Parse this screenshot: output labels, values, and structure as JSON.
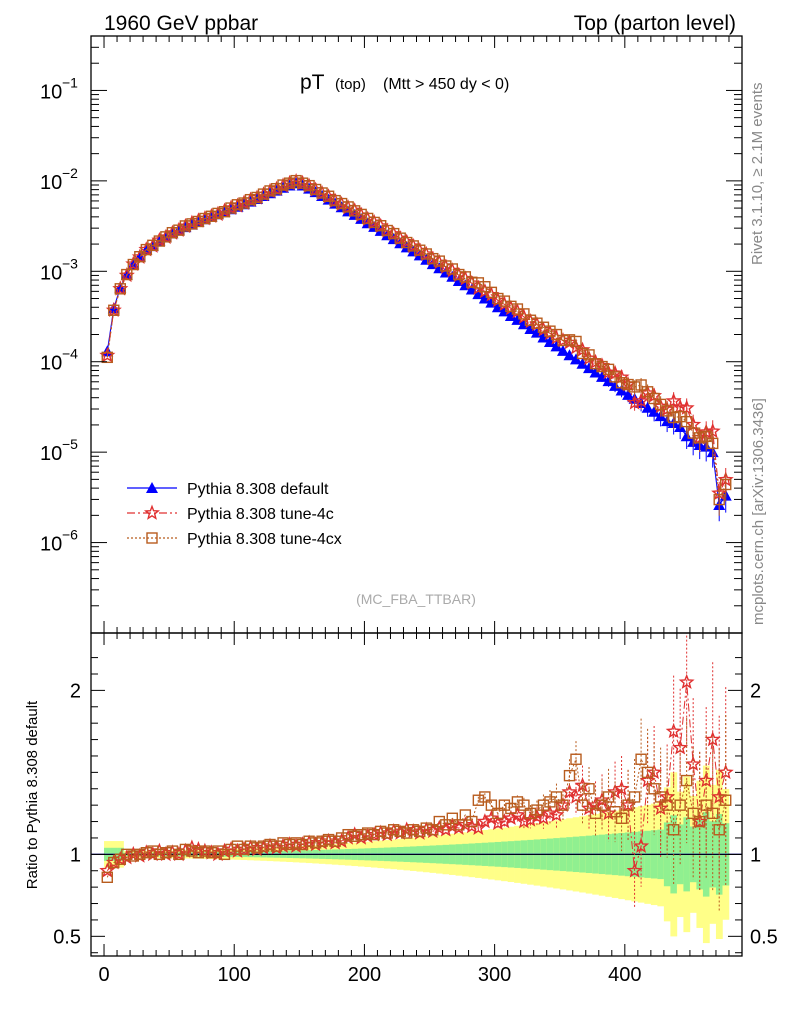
{
  "header": {
    "left": "1960 GeV ppbar",
    "right": "Top (parton level)"
  },
  "plot_title": {
    "main": "pT",
    "sub": "(top)",
    "cut": "(Mtt > 450 dy < 0)"
  },
  "side_labels": {
    "rivet": "Rivet 3.1.10, ≥ 2.1M events",
    "mcplots": "mcplots.cern.ch [arXiv:1306.3436]"
  },
  "analysis_tag": "(MC_FBA_TTBAR)",
  "ratio_ylabel": "Ratio to Pythia 8.308 default",
  "colors": {
    "default": "#0000ff",
    "tune4c": "#e03030",
    "tune4cx": "#b85c1e",
    "band_green": "#90f090",
    "band_yellow": "#ffff88"
  },
  "chart_data": [
    {
      "type": "scatter",
      "log_y": true,
      "xlim": [
        -10,
        490
      ],
      "ylim": [
        1e-07,
        0.4
      ],
      "y_ticks": [
        {
          "value": 1e-06,
          "label": "10",
          "exp": "−6"
        },
        {
          "value": 1e-05,
          "label": "10",
          "exp": "−5"
        },
        {
          "value": 0.0001,
          "label": "10",
          "exp": "−4"
        },
        {
          "value": 0.001,
          "label": "10",
          "exp": "−3"
        },
        {
          "value": 0.01,
          "label": "10",
          "exp": "−2"
        },
        {
          "value": 0.1,
          "label": "10",
          "exp": "−1"
        }
      ],
      "legend_position": "bottom-left",
      "series": [
        {
          "name": "Pythia 8.308 default",
          "key": "default",
          "marker": "triangle",
          "x": [
            2.5,
            7.5,
            12.5,
            17.5,
            22.5,
            27.5,
            32.5,
            37.5,
            42.5,
            47.5,
            52.5,
            57.5,
            62.5,
            67.5,
            72.5,
            77.5,
            82.5,
            87.5,
            92.5,
            97.5,
            102.5,
            107.5,
            112.5,
            117.5,
            122.5,
            127.5,
            132.5,
            137.5,
            142.5,
            147.5,
            152.5,
            157.5,
            162.5,
            167.5,
            172.5,
            177.5,
            182.5,
            187.5,
            192.5,
            197.5,
            202.5,
            207.5,
            212.5,
            217.5,
            222.5,
            227.5,
            232.5,
            237.5,
            242.5,
            247.5,
            252.5,
            257.5,
            262.5,
            267.5,
            272.5,
            277.5,
            282.5,
            287.5,
            292.5,
            297.5,
            302.5,
            307.5,
            312.5,
            317.5,
            322.5,
            327.5,
            332.5,
            337.5,
            342.5,
            347.5,
            352.5,
            357.5,
            362.5,
            367.5,
            372.5,
            377.5,
            382.5,
            387.5,
            392.5,
            397.5,
            402.5,
            407.5,
            412.5,
            417.5,
            422.5,
            427.5,
            432.5,
            437.5,
            442.5,
            447.5,
            452.5,
            457.5,
            462.5,
            467.5,
            472.5,
            477.5
          ],
          "y": [
            0.00013,
            0.00039,
            0.00066,
            0.00092,
            0.0012,
            0.00145,
            0.00172,
            0.0019,
            0.00216,
            0.00238,
            0.00262,
            0.00285,
            0.00308,
            0.00328,
            0.00352,
            0.00376,
            0.00402,
            0.00428,
            0.00456,
            0.00486,
            0.00518,
            0.00552,
            0.0059,
            0.0063,
            0.0068,
            0.0073,
            0.0078,
            0.0084,
            0.0089,
            0.0094,
            0.0089,
            0.0082,
            0.0075,
            0.0068,
            0.0062,
            0.0056,
            0.0051,
            0.0046,
            0.0042,
            0.0038,
            0.0034,
            0.0031,
            0.0028,
            0.0025,
            0.00227,
            0.00204,
            0.00184,
            0.00166,
            0.0015,
            0.00134,
            0.0012,
            0.00108,
            0.00097,
            0.00087,
            0.00078,
            0.0007,
            0.00063,
            0.00056,
            0.0005,
            0.00045,
            0.0004,
            0.00036,
            0.00032,
            0.00029,
            0.00026,
            0.00023,
            0.00021,
            0.000185,
            0.000165,
            0.000148,
            0.000132,
            0.000118,
            0.000106,
            9.5e-05,
            8.5e-05,
            7.6e-05,
            6.8e-05,
            6.1e-05,
            5.4e-05,
            4.8e-05,
            4.3e-05,
            3.9e-05,
            3.5e-05,
            3.1e-05,
            2.8e-05,
            2.5e-05,
            2.2e-05,
            2.1e-05,
            1.9e-05,
            1.5e-05,
            1.3e-05,
            1.2e-05,
            1.15e-05,
            1e-05,
            2.6e-06,
            3.3e-06
          ]
        },
        {
          "name": "Pythia 8.308 tune-4c",
          "key": "tune4c",
          "marker": "star",
          "ratio": [
            0.9,
            0.95,
            0.97,
            0.98,
            1.0,
            0.99,
            1.01,
            1.0,
            1.02,
            1.0,
            1.01,
            1.0,
            1.02,
            1.04,
            1.03,
            1.02,
            1.01,
            1.0,
            1.02,
            1.03,
            1.02,
            1.03,
            1.04,
            1.03,
            1.04,
            1.05,
            1.04,
            1.05,
            1.06,
            1.05,
            1.06,
            1.07,
            1.06,
            1.07,
            1.08,
            1.07,
            1.08,
            1.1,
            1.12,
            1.1,
            1.11,
            1.12,
            1.13,
            1.12,
            1.14,
            1.13,
            1.15,
            1.14,
            1.13,
            1.15,
            1.14,
            1.16,
            1.15,
            1.17,
            1.16,
            1.18,
            1.17,
            1.16,
            1.2,
            1.22,
            1.19,
            1.2,
            1.22,
            1.24,
            1.2,
            1.21,
            1.23,
            1.22,
            1.25,
            1.24,
            1.3,
            1.38,
            1.35,
            1.42,
            1.28,
            1.3,
            1.33,
            1.25,
            1.38,
            1.4,
            1.3,
            0.9,
            1.05,
            1.45,
            1.5,
            1.28,
            1.35,
            1.75,
            1.65,
            2.05,
            1.55,
            1.2,
            1.45,
            1.7,
            1.35,
            1.5
          ]
        },
        {
          "name": "Pythia 8.308 tune-4cx",
          "key": "tune4cx",
          "marker": "square",
          "ratio": [
            0.86,
            0.95,
            0.97,
            1.0,
            0.99,
            1.0,
            1.01,
            1.02,
            1.0,
            1.01,
            1.02,
            1.0,
            1.03,
            1.02,
            1.01,
            1.02,
            1.01,
            1.02,
            1.0,
            1.03,
            1.05,
            1.03,
            1.05,
            1.04,
            1.05,
            1.06,
            1.05,
            1.07,
            1.06,
            1.07,
            1.06,
            1.08,
            1.07,
            1.08,
            1.09,
            1.08,
            1.1,
            1.12,
            1.11,
            1.12,
            1.13,
            1.12,
            1.14,
            1.13,
            1.15,
            1.14,
            1.13,
            1.15,
            1.14,
            1.16,
            1.15,
            1.2,
            1.18,
            1.22,
            1.18,
            1.24,
            1.2,
            1.33,
            1.35,
            1.3,
            1.25,
            1.3,
            1.28,
            1.32,
            1.3,
            1.25,
            1.27,
            1.3,
            1.32,
            1.35,
            1.3,
            1.48,
            1.58,
            1.3,
            1.4,
            1.25,
            1.3,
            1.35,
            1.26,
            1.22,
            1.3,
            1.35,
            1.58,
            1.5,
            1.4,
            1.35,
            1.3,
            1.15,
            1.3,
            1.45,
            1.25,
            1.2,
            1.3,
            1.25,
            1.15,
            1.33
          ]
        }
      ]
    },
    {
      "type": "scatter",
      "panel": "ratio",
      "xlim": [
        -10,
        490
      ],
      "ylim": [
        0.38,
        2.35
      ],
      "y_ticks": [
        0.5,
        1,
        2
      ],
      "y_tick_labels": [
        "0.5",
        "1",
        "2"
      ],
      "x_ticks": [
        0,
        100,
        200,
        300,
        400
      ],
      "x_tick_labels": [
        "0",
        "100",
        "200",
        "300",
        "400"
      ],
      "reference_line": 1
    }
  ]
}
